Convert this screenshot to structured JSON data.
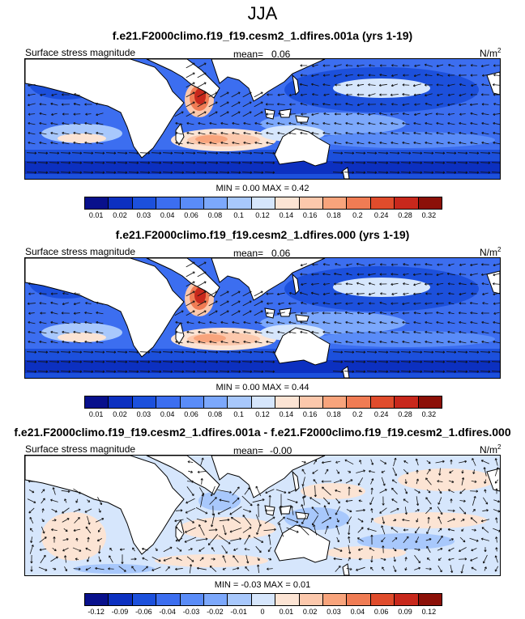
{
  "season": "JJA",
  "units": "N/m",
  "units_sup": "2",
  "palettes": {
    "abs": [
      "#08108c",
      "#0c30c0",
      "#1c50dc",
      "#3c6ef0",
      "#5a8cf8",
      "#7ca8fc",
      "#a8c8fc",
      "#d6e6fc",
      "#fce4d4",
      "#fcc8ac",
      "#f8a47c",
      "#f07c54",
      "#e04c2c",
      "#c8281c",
      "#8c1008"
    ],
    "diff": [
      "#08108c",
      "#0c30c0",
      "#1c50dc",
      "#3c6ef0",
      "#5a8cf8",
      "#7ca8fc",
      "#a8c8fc",
      "#d6e6fc",
      "#fce4d4",
      "#fcc8ac",
      "#f8a47c",
      "#f07c54",
      "#e04c2c",
      "#c8281c",
      "#8c1008"
    ]
  },
  "panels": [
    {
      "title": "f.e21.F2000climo.f19_f19.cesm2_1.dfires.001a (yrs 1-19)",
      "variable": "Surface stress magnitude",
      "mean_label": "mean=",
      "mean_value": "0.06",
      "minmax": "MIN =   0.00 MAX =   0.42",
      "colorbar_labels": [
        "0.01",
        "0.02",
        "0.03",
        "0.04",
        "0.06",
        "0.08",
        "0.1",
        "0.12",
        "0.14",
        "0.16",
        "0.18",
        "0.2",
        "0.24",
        "0.28",
        "0.32"
      ]
    },
    {
      "title": "f.e21.F2000climo.f19_f19.cesm2_1.dfires.000 (yrs 1-19)",
      "variable": "Surface stress magnitude",
      "mean_label": "mean=",
      "mean_value": "0.06",
      "minmax": "MIN =   0.00 MAX =   0.44",
      "colorbar_labels": [
        "0.01",
        "0.02",
        "0.03",
        "0.04",
        "0.06",
        "0.08",
        "0.1",
        "0.12",
        "0.14",
        "0.16",
        "0.18",
        "0.2",
        "0.24",
        "0.28",
        "0.32"
      ]
    },
    {
      "title": "f.e21.F2000climo.f19_f19.cesm2_1.dfires.001a - f.e21.F2000climo.f19_f19.cesm2_1.dfires.000",
      "variable": "Surface stress magnitude",
      "mean_label": "mean=",
      "mean_value": "-0.00",
      "minmax": "MIN =  -0.03 MAX =   0.01",
      "colorbar_labels": [
        "-0.12",
        "-0.09",
        "-0.06",
        "-0.04",
        "-0.03",
        "-0.02",
        "-0.01",
        "0",
        "0.01",
        "0.02",
        "0.03",
        "0.04",
        "0.06",
        "0.09",
        "0.12"
      ]
    }
  ]
}
